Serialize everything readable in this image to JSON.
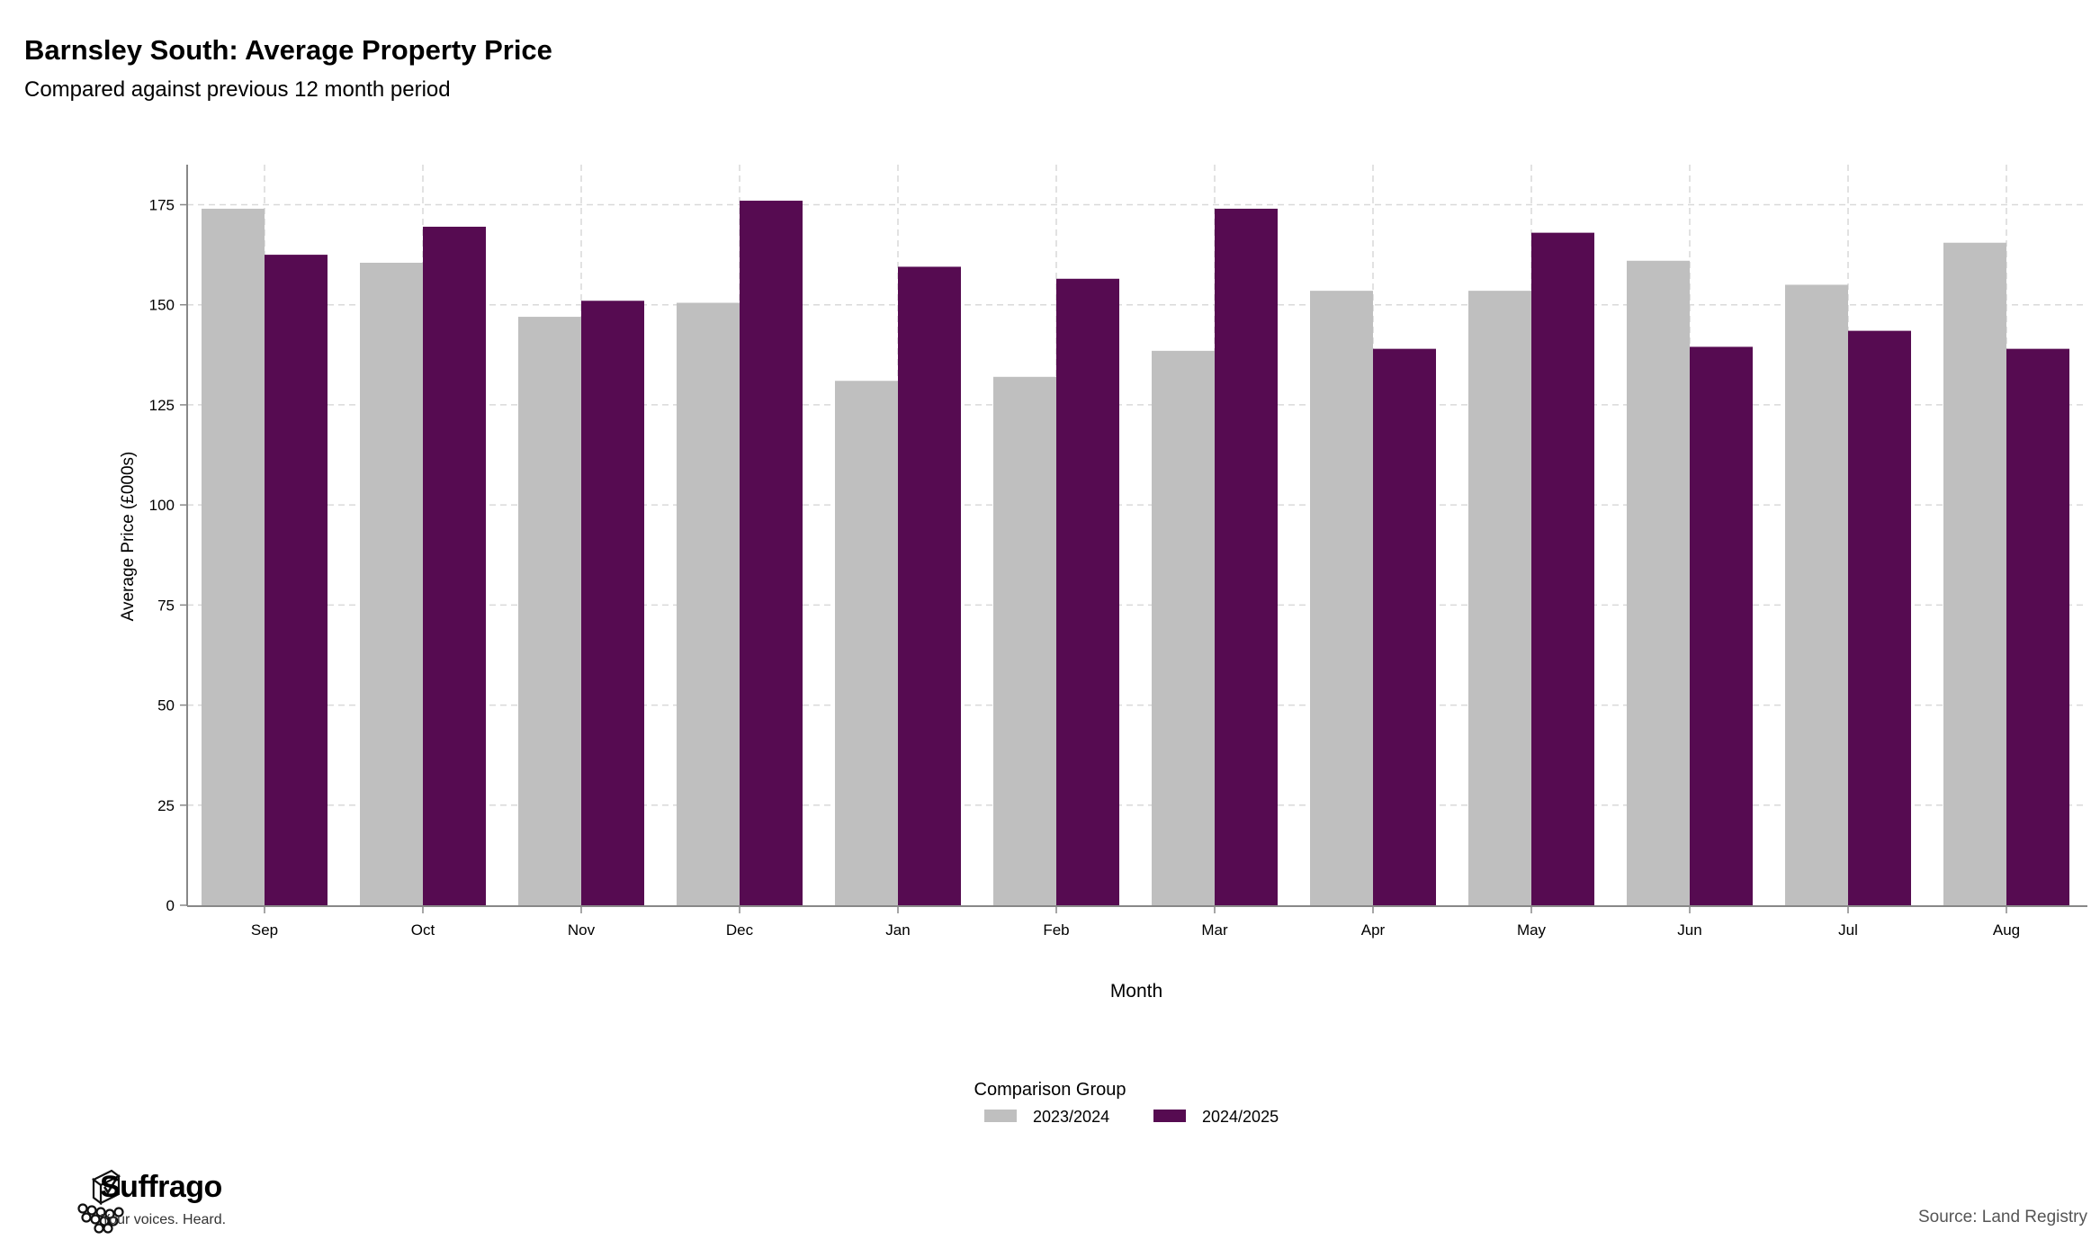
{
  "header": {
    "title": "Barnsley South: Average Property Price",
    "subtitle": "Compared against previous 12 month period"
  },
  "footer": {
    "brand_name": "Suffrago",
    "brand_tagline": "Your voices. Heard.",
    "source": "Source: Land Registry"
  },
  "legend": {
    "title": "Comparison Group"
  },
  "colors": {
    "series_2023_2024": "#bfbfbf",
    "series_2024_2025": "#560b51",
    "grid": "#d9d9d9",
    "axis": "#888888"
  },
  "chart_data": {
    "type": "bar",
    "xlabel": "Month",
    "ylabel": "Average Price (£000s)",
    "categories": [
      "Sep",
      "Oct",
      "Nov",
      "Dec",
      "Jan",
      "Feb",
      "Mar",
      "Apr",
      "May",
      "Jun",
      "Jul",
      "Aug"
    ],
    "series": [
      {
        "name": "2023/2024",
        "values": [
          174,
          160.5,
          147,
          150.5,
          131,
          132,
          138.5,
          153.5,
          153.5,
          161,
          155,
          165.5
        ]
      },
      {
        "name": "2024/2025",
        "values": [
          162.5,
          169.5,
          151,
          176,
          159.5,
          156.5,
          174,
          139,
          168,
          139.5,
          143.5,
          139
        ]
      }
    ],
    "yticks": [
      0,
      25,
      50,
      75,
      100,
      125,
      150,
      175
    ],
    "ylim": [
      0,
      185
    ],
    "grid": true,
    "legend_position": "bottom-center"
  }
}
